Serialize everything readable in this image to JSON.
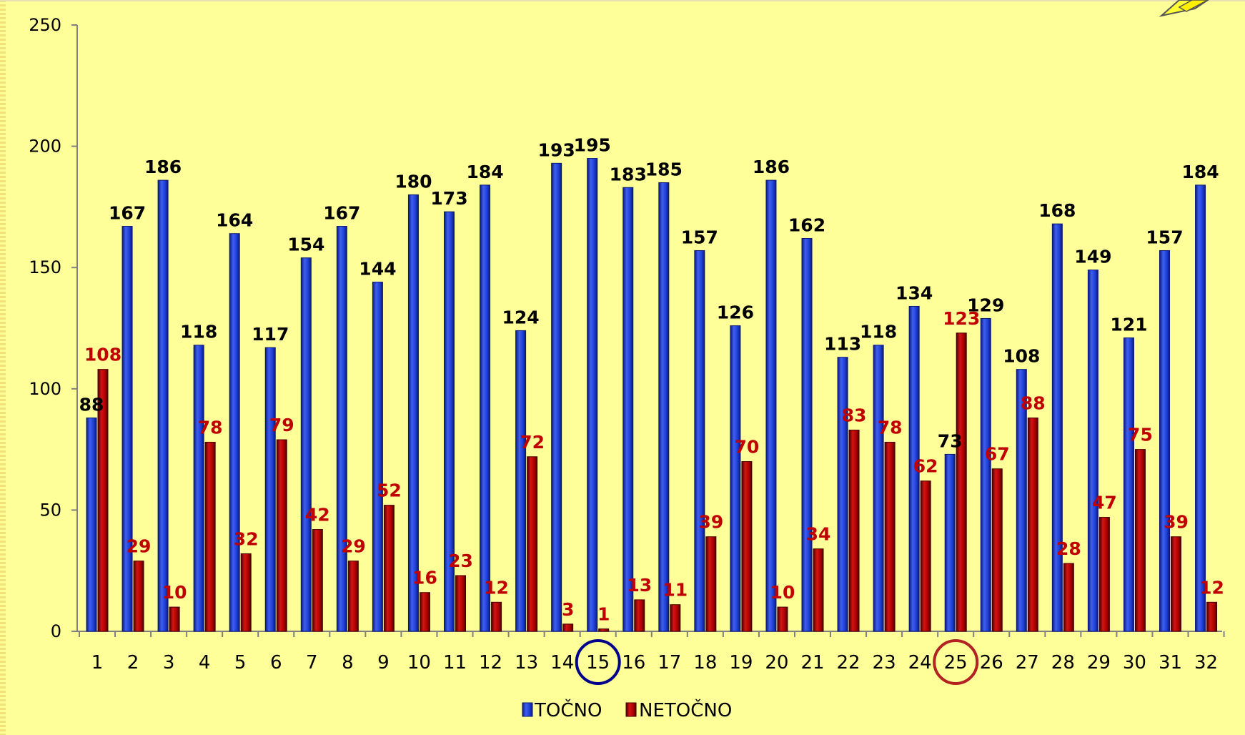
{
  "chart_data": {
    "type": "bar",
    "categories": [
      "1",
      "2",
      "3",
      "4",
      "5",
      "6",
      "7",
      "8",
      "9",
      "10",
      "11",
      "12",
      "13",
      "14",
      "15",
      "16",
      "17",
      "18",
      "19",
      "20",
      "21",
      "22",
      "23",
      "24",
      "25",
      "26",
      "27",
      "28",
      "29",
      "30",
      "31",
      "32"
    ],
    "series": [
      {
        "name": "TOČNO",
        "values": [
          88,
          167,
          186,
          118,
          164,
          117,
          154,
          167,
          144,
          180,
          173,
          184,
          124,
          193,
          195,
          183,
          185,
          157,
          126,
          186,
          162,
          113,
          118,
          134,
          73,
          129,
          108,
          168,
          149,
          121,
          157,
          184
        ]
      },
      {
        "name": "NETOČNO",
        "values": [
          108,
          29,
          10,
          78,
          32,
          79,
          42,
          29,
          52,
          16,
          23,
          12,
          72,
          3,
          1,
          13,
          11,
          39,
          70,
          10,
          34,
          83,
          78,
          62,
          123,
          67,
          88,
          28,
          47,
          75,
          39,
          12
        ]
      }
    ],
    "ylim": [
      0,
      250
    ],
    "yticks": [
      "0",
      "50",
      "100",
      "150",
      "200",
      "250"
    ],
    "grid": false,
    "legend": "bottom",
    "highlighted_categories": [
      {
        "category": "15",
        "color": "#00008b"
      },
      {
        "category": "25",
        "color": "#b22222"
      }
    ],
    "colors": {
      "series_1": "#1f3fd6",
      "series_1_dark": "#0a1a78",
      "series_2": "#b00000",
      "series_2_dark": "#4a0000",
      "label_series_1": "#000000",
      "label_series_2": "#c00000",
      "background": "#ffff99"
    }
  }
}
